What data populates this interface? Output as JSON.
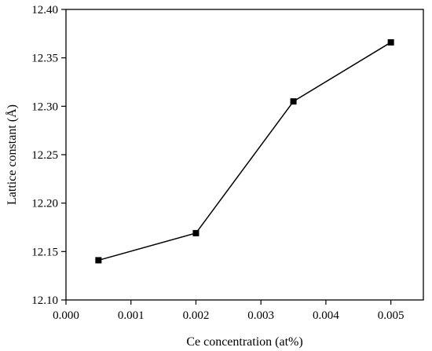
{
  "chart_data": {
    "type": "line",
    "title": "",
    "xlabel": "Ce concentration (at%)",
    "ylabel": "Lattice constant (Å)",
    "xlim": [
      0.0,
      0.0055
    ],
    "ylim": [
      12.1,
      12.4
    ],
    "xticks": [
      "0.000",
      "0.001",
      "0.002",
      "0.003",
      "0.004",
      "0.005"
    ],
    "yticks": [
      "12.10",
      "12.15",
      "12.20",
      "12.25",
      "12.30",
      "12.35",
      "12.40"
    ],
    "grid": false,
    "legend": "none",
    "marker": "square",
    "color": "#000000",
    "series": [
      {
        "x": [
          0.0005,
          0.002,
          0.0035,
          0.005
        ],
        "y": [
          12.141,
          12.169,
          12.305,
          12.366
        ]
      }
    ]
  }
}
